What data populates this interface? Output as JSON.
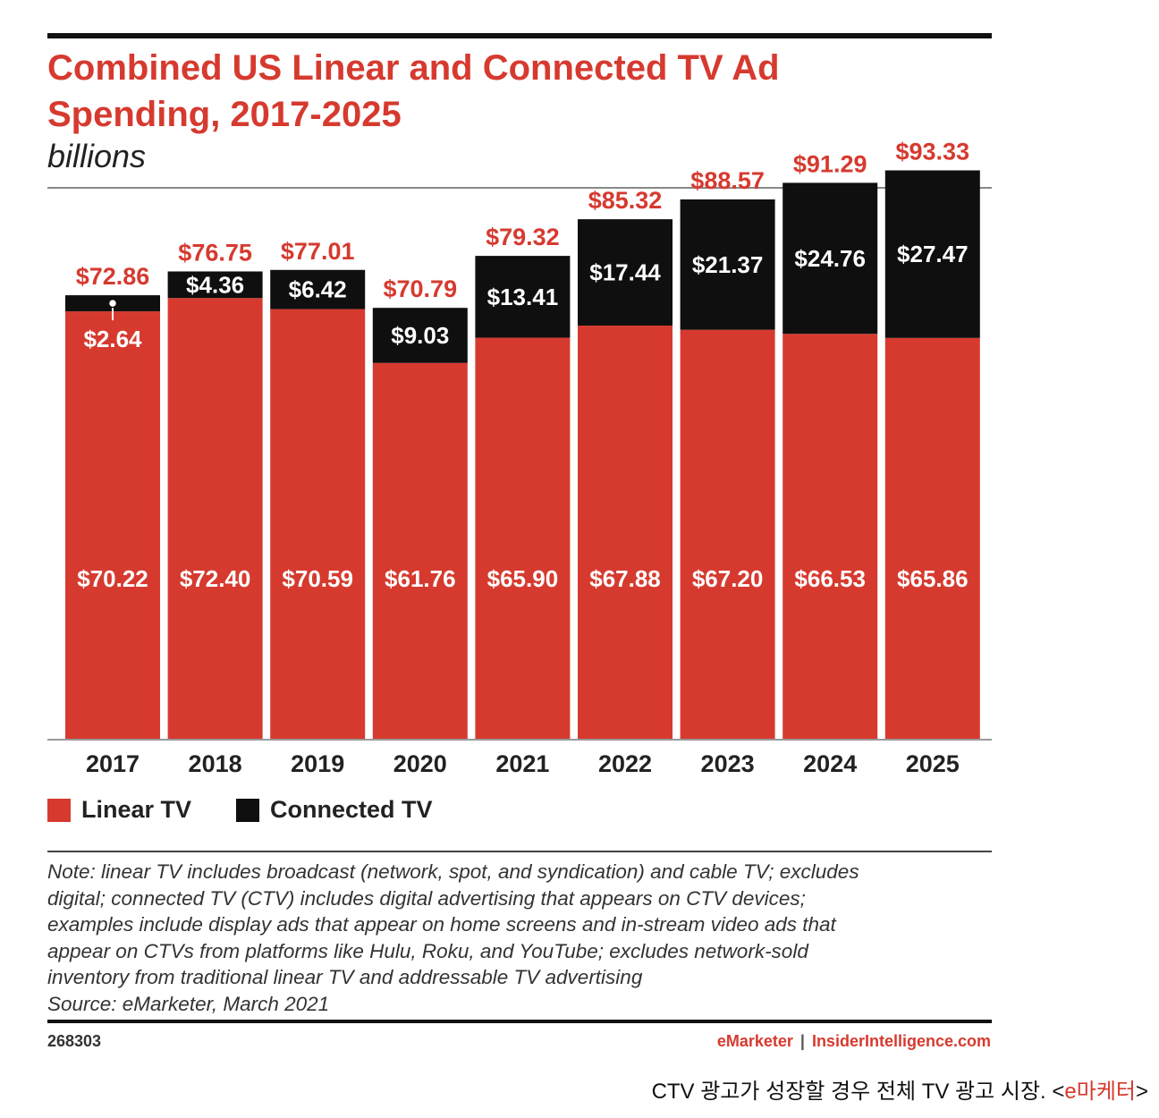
{
  "header": {
    "title_line1": "Combined US Linear and Connected TV Ad",
    "title_line2": "Spending, 2017-2025",
    "subtitle": "billions"
  },
  "chart_data": {
    "type": "bar",
    "stacked": true,
    "title": "Combined US Linear and Connected TV Ad Spending, 2017-2025",
    "ylabel": "billions",
    "categories": [
      "2017",
      "2018",
      "2019",
      "2020",
      "2021",
      "2022",
      "2023",
      "2024",
      "2025"
    ],
    "series": [
      {
        "name": "Linear TV",
        "color": "#d63a2f",
        "values": [
          70.22,
          72.4,
          70.59,
          61.76,
          65.9,
          67.88,
          67.2,
          66.53,
          65.86
        ],
        "labels": [
          "$70.22",
          "$72.40",
          "$70.59",
          "$61.76",
          "$65.90",
          "$67.88",
          "$67.20",
          "$66.53",
          "$65.86"
        ]
      },
      {
        "name": "Connected TV",
        "color": "#0f0f0f",
        "values": [
          2.64,
          4.36,
          6.42,
          9.03,
          13.41,
          17.44,
          21.37,
          24.76,
          27.47
        ],
        "labels": [
          "$2.64",
          "$4.36",
          "$6.42",
          "$9.03",
          "$13.41",
          "$17.44",
          "$21.37",
          "$24.76",
          "$27.47"
        ]
      }
    ],
    "totals": [
      72.86,
      76.75,
      77.01,
      70.79,
      79.32,
      85.32,
      88.57,
      91.29,
      93.33
    ],
    "total_labels": [
      "$72.86",
      "$76.75",
      "$77.01",
      "$70.79",
      "$79.32",
      "$85.32",
      "$88.57",
      "$91.29",
      "$93.33"
    ],
    "ylim": [
      0,
      100
    ],
    "grid": false,
    "legend_position": "bottom-left"
  },
  "legend": {
    "linear_label": "Linear TV",
    "connected_label": "Connected TV"
  },
  "note": {
    "lines": [
      "Note: linear TV includes broadcast (network, spot, and syndication) and cable TV; excludes",
      "digital; connected TV (CTV) includes digital advertising that appears on CTV devices;",
      "examples include display ads that appear on home screens and in-stream video ads that",
      "appear on CTVs from platforms like Hulu, Roku, and YouTube; excludes network-sold",
      "inventory from traditional linear TV and addressable TV advertising"
    ],
    "source": "Source: eMarketer, March 2021"
  },
  "footer": {
    "chart_id": "268303",
    "brand_emarketer": "eMarketer",
    "brand_separator": "|",
    "brand_insider": "InsiderIntelligence.com"
  },
  "caption": {
    "text": "CTV 광고가 성장할 경우 전체 TV 광고 시장. <",
    "source": "e마케터",
    "close": ">"
  },
  "colors": {
    "accent": "#d63a2f",
    "dark": "#0f0f0f"
  }
}
